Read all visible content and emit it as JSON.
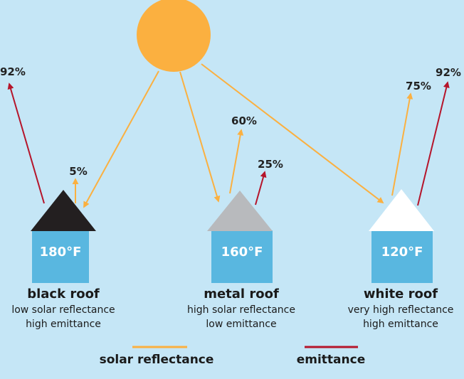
{
  "colors": {
    "background": "#c5e6f6",
    "sun": "#fbb040",
    "solar_reflectance": "#fbb040",
    "emittance": "#b5152b",
    "wall": "#59b7e0",
    "black_roof": "#231f20",
    "metal_roof": "#b8babd",
    "white_roof": "#ffffff"
  },
  "houses": [
    {
      "key": "black",
      "temperature": "180°F",
      "name": "black roof",
      "desc_line1": "low solar reflectance",
      "desc_line2": "high emittance",
      "reflectance_pct": "5%",
      "emittance_pct": "92%"
    },
    {
      "key": "metal",
      "temperature": "160°F",
      "name": "metal roof",
      "desc_line1": "high solar reflectance",
      "desc_line2": "low emittance",
      "reflectance_pct": "60%",
      "emittance_pct": "25%"
    },
    {
      "key": "white",
      "temperature": "120°F",
      "name": "white roof",
      "desc_line1": "very high reflectance",
      "desc_line2": "high emittance",
      "reflectance_pct": "75%",
      "emittance_pct": "92%"
    }
  ],
  "legend": {
    "solar_label": "solar reflectance",
    "emittance_label": "emittance"
  }
}
